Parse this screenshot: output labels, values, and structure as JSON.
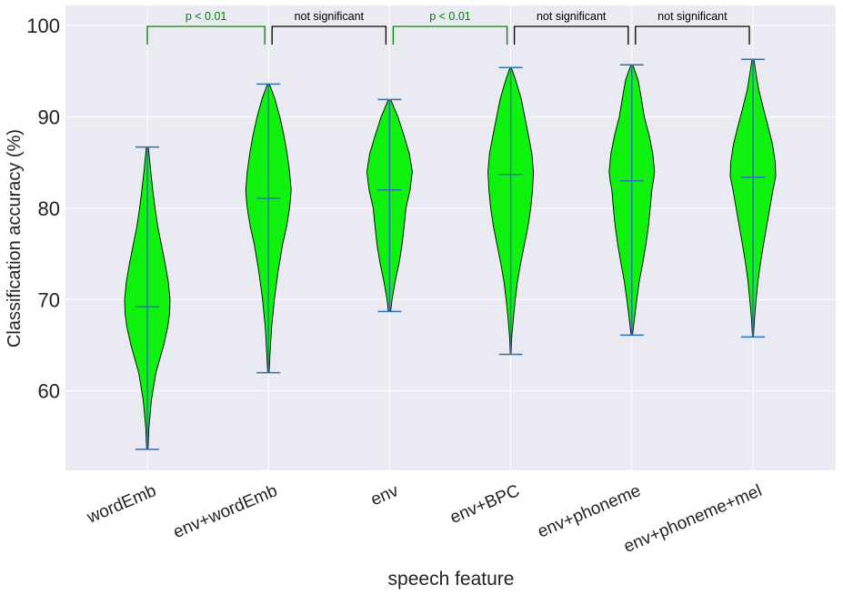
{
  "chart_data": {
    "type": "violin",
    "title": "",
    "xlabel": "speech feature",
    "ylabel": "Classification accuracy (%)",
    "ylim": [
      51.3,
      102.2
    ],
    "yticks": [
      60,
      70,
      80,
      90,
      100
    ],
    "grid": true,
    "fill_color": "#0ff20f",
    "line_color": "#2b73b4",
    "categories": [
      "wordEmb",
      "env+wordEmb",
      "env",
      "env+BPC",
      "env+phoneme",
      "env+phoneme+mel"
    ],
    "series": [
      {
        "category": "wordEmb",
        "min": 53.6,
        "median": 69.2,
        "max": 86.7,
        "shape": [
          [
            53.6,
            0.03
          ],
          [
            56,
            0.07
          ],
          [
            59,
            0.18
          ],
          [
            62,
            0.38
          ],
          [
            65,
            0.72
          ],
          [
            67,
            0.9
          ],
          [
            68.5,
            0.98
          ],
          [
            70,
            1.0
          ],
          [
            72,
            0.92
          ],
          [
            74,
            0.78
          ],
          [
            76,
            0.62
          ],
          [
            78,
            0.46
          ],
          [
            80,
            0.34
          ],
          [
            82,
            0.24
          ],
          [
            84,
            0.15
          ],
          [
            86,
            0.07
          ],
          [
            86.7,
            0.04
          ]
        ]
      },
      {
        "category": "env+wordEmb",
        "min": 62.0,
        "median": 81.1,
        "max": 93.6,
        "shape": [
          [
            62.0,
            0.03
          ],
          [
            64,
            0.07
          ],
          [
            67,
            0.14
          ],
          [
            70,
            0.26
          ],
          [
            73,
            0.42
          ],
          [
            76,
            0.62
          ],
          [
            78,
            0.8
          ],
          [
            80,
            0.93
          ],
          [
            81,
            0.97
          ],
          [
            82,
            1.0
          ],
          [
            84,
            0.93
          ],
          [
            86,
            0.82
          ],
          [
            88,
            0.68
          ],
          [
            90,
            0.5
          ],
          [
            92,
            0.28
          ],
          [
            93.6,
            0.04
          ]
        ]
      },
      {
        "category": "env",
        "min": 68.7,
        "median": 82.0,
        "max": 91.9,
        "shape": [
          [
            68.7,
            0.05
          ],
          [
            70,
            0.11
          ],
          [
            72,
            0.25
          ],
          [
            74,
            0.42
          ],
          [
            76,
            0.55
          ],
          [
            78,
            0.64
          ],
          [
            80,
            0.72
          ],
          [
            82,
            0.9
          ],
          [
            83,
            0.95
          ],
          [
            84,
            1.0
          ],
          [
            86,
            0.87
          ],
          [
            88,
            0.63
          ],
          [
            90,
            0.37
          ],
          [
            91.9,
            0.05
          ]
        ]
      },
      {
        "category": "env+BPC",
        "min": 64.0,
        "median": 83.7,
        "max": 95.4,
        "shape": [
          [
            64.0,
            0.02
          ],
          [
            66,
            0.05
          ],
          [
            68,
            0.12
          ],
          [
            70,
            0.2
          ],
          [
            72,
            0.3
          ],
          [
            74,
            0.44
          ],
          [
            76,
            0.6
          ],
          [
            78,
            0.76
          ],
          [
            80,
            0.88
          ],
          [
            82,
            0.96
          ],
          [
            84,
            1.0
          ],
          [
            86,
            0.93
          ],
          [
            88,
            0.78
          ],
          [
            90,
            0.62
          ],
          [
            92,
            0.46
          ],
          [
            94,
            0.22
          ],
          [
            95.4,
            0.03
          ]
        ]
      },
      {
        "category": "env+phoneme",
        "min": 66.1,
        "median": 83.0,
        "max": 95.7,
        "shape": [
          [
            66.1,
            0.03
          ],
          [
            68,
            0.12
          ],
          [
            70,
            0.22
          ],
          [
            72,
            0.33
          ],
          [
            74,
            0.48
          ],
          [
            76,
            0.62
          ],
          [
            78,
            0.73
          ],
          [
            80,
            0.81
          ],
          [
            82,
            0.88
          ],
          [
            83,
            0.95
          ],
          [
            84,
            1.0
          ],
          [
            86,
            0.92
          ],
          [
            88,
            0.76
          ],
          [
            90,
            0.55
          ],
          [
            92,
            0.42
          ],
          [
            94,
            0.28
          ],
          [
            95.7,
            0.04
          ]
        ]
      },
      {
        "category": "env+phoneme+mel",
        "min": 65.9,
        "median": 83.4,
        "max": 96.3,
        "shape": [
          [
            65.9,
            0.02
          ],
          [
            68,
            0.07
          ],
          [
            70,
            0.14
          ],
          [
            72,
            0.22
          ],
          [
            74,
            0.33
          ],
          [
            76,
            0.46
          ],
          [
            78,
            0.6
          ],
          [
            80,
            0.74
          ],
          [
            82,
            0.88
          ],
          [
            83.5,
            1.0
          ],
          [
            85,
            0.98
          ],
          [
            87,
            0.86
          ],
          [
            89,
            0.66
          ],
          [
            91,
            0.45
          ],
          [
            93,
            0.25
          ],
          [
            95,
            0.12
          ],
          [
            96.3,
            0.04
          ]
        ]
      }
    ],
    "annotations": [
      {
        "from": 0,
        "to": 1,
        "text": "p < 0.01",
        "color": "#008000"
      },
      {
        "from": 1,
        "to": 2,
        "text": "not significant",
        "color": "#000000"
      },
      {
        "from": 2,
        "to": 3,
        "text": "p < 0.01",
        "color": "#008000"
      },
      {
        "from": 3,
        "to": 4,
        "text": "not significant",
        "color": "#000000"
      },
      {
        "from": 4,
        "to": 5,
        "text": "not significant",
        "color": "#000000"
      }
    ]
  }
}
